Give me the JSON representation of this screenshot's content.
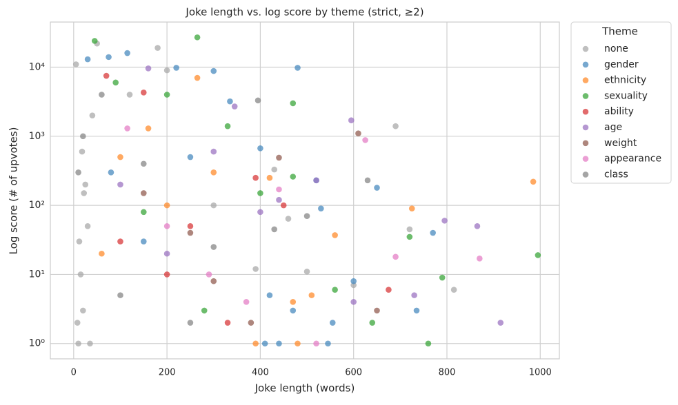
{
  "chart_data": {
    "type": "scatter",
    "title": "Joke length vs. log score by theme (strict, ≥2)",
    "x_label": "Joke length (words)",
    "y_label": "Log score (# of upvotes)",
    "legend_title": "Theme",
    "legend": "outside-right",
    "grid": true,
    "log_y": true,
    "xlim": [
      -50,
      1041
    ],
    "xticks": [
      0,
      200,
      400,
      600,
      800,
      1000
    ],
    "ylim": [
      0.6,
      45000
    ],
    "yticks": [
      {
        "value": 1,
        "label": "10⁰"
      },
      {
        "value": 10,
        "label": "10¹"
      },
      {
        "value": 100,
        "label": "10²"
      },
      {
        "value": 1000,
        "label": "10³"
      },
      {
        "value": 10000,
        "label": "10⁴"
      }
    ],
    "series": [
      {
        "name": "none",
        "color": "#a9a9a9",
        "x": [
          10,
          20,
          15,
          30,
          25,
          40,
          50,
          180,
          5,
          120,
          200,
          300,
          430,
          600,
          690,
          815,
          720,
          390,
          460,
          500,
          8,
          12,
          18,
          22,
          35
        ],
        "values": [
          1,
          3,
          10,
          50,
          200,
          2000,
          22000,
          19000,
          11000,
          4000,
          9000,
          100,
          330,
          7,
          1400,
          6,
          45,
          12,
          64,
          11,
          2,
          30,
          600,
          150,
          1
        ]
      },
      {
        "name": "gender",
        "color": "#4a8bbf",
        "x": [
          480,
          115,
          30,
          75,
          300,
          220,
          335,
          400,
          520,
          530,
          650,
          600,
          770,
          735,
          555,
          410,
          440,
          150,
          80,
          250,
          545,
          470,
          420
        ],
        "values": [
          9800,
          16000,
          13000,
          14000,
          8800,
          9800,
          3200,
          670,
          230,
          90,
          180,
          8,
          40,
          3,
          2,
          1,
          1,
          30,
          300,
          500,
          1,
          3,
          5
        ]
      },
      {
        "name": "ethnicity",
        "color": "#ff8c2e",
        "x": [
          265,
          985,
          725,
          560,
          510,
          390,
          470,
          160,
          100,
          60,
          200,
          300,
          420,
          480
        ],
        "values": [
          7000,
          220,
          90,
          37,
          5,
          1,
          4,
          1300,
          500,
          20,
          100,
          300,
          250,
          1
        ]
      },
      {
        "name": "sexuality",
        "color": "#3ba53b",
        "x": [
          265,
          45,
          470,
          995,
          760,
          790,
          640,
          720,
          560,
          470,
          330,
          150,
          200,
          90,
          400,
          280
        ],
        "values": [
          27000,
          24000,
          3000,
          19,
          1,
          9,
          2,
          35,
          6,
          260,
          1400,
          80,
          4000,
          6000,
          150,
          3
        ]
      },
      {
        "name": "ability",
        "color": "#d83a3b",
        "x": [
          70,
          150,
          450,
          675,
          390,
          250,
          100,
          330,
          200
        ],
        "values": [
          7500,
          4300,
          100,
          6,
          250,
          50,
          30,
          2,
          10
        ]
      },
      {
        "name": "age",
        "color": "#9c74c2",
        "x": [
          160,
          595,
          915,
          865,
          795,
          730,
          600,
          345,
          520,
          440,
          300,
          100,
          200,
          400
        ],
        "values": [
          9600,
          1700,
          2,
          50,
          60,
          5,
          4,
          2700,
          230,
          120,
          600,
          200,
          20,
          80
        ]
      },
      {
        "name": "weight",
        "color": "#935e52",
        "x": [
          610,
          650,
          440,
          380,
          250,
          150,
          300
        ],
        "values": [
          1100,
          3,
          490,
          2,
          40,
          150,
          8
        ]
      },
      {
        "name": "appearance",
        "color": "#e47fc6",
        "x": [
          625,
          870,
          690,
          520,
          440,
          370,
          115,
          200,
          290
        ],
        "values": [
          880,
          17,
          18,
          1,
          170,
          4,
          1300,
          50,
          10
        ]
      },
      {
        "name": "class",
        "color": "#878787",
        "x": [
          395,
          630,
          500,
          430,
          300,
          150,
          60,
          20,
          10,
          250,
          100
        ],
        "values": [
          3300,
          230,
          70,
          45,
          25,
          400,
          4000,
          1000,
          300,
          2,
          5
        ]
      }
    ]
  }
}
